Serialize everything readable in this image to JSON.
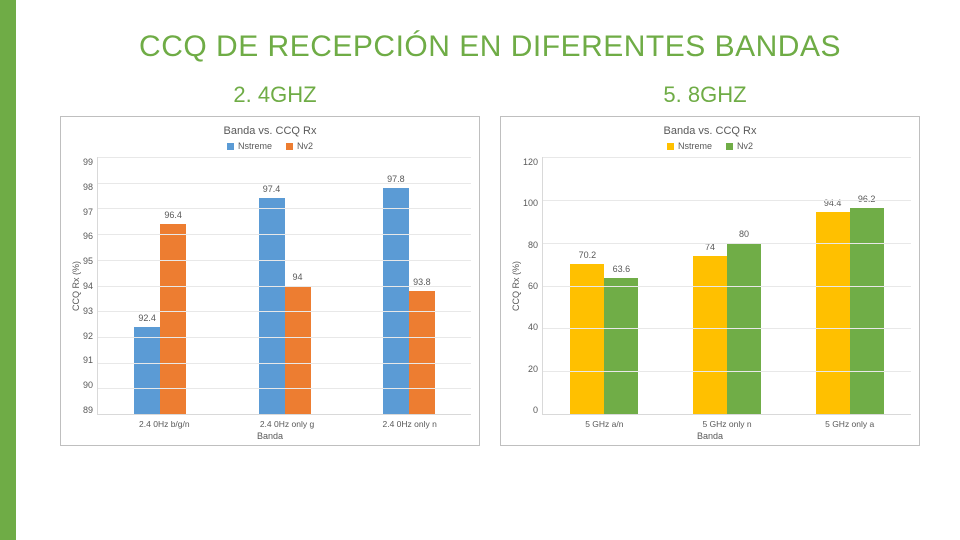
{
  "title": "CCQ DE RECEPCIÓN EN DIFERENTES BANDAS",
  "subtitles": {
    "left": "2. 4GHZ",
    "right": "5. 8GHZ"
  },
  "legend_series": {
    "a": "Nstreme",
    "b": "Nv2"
  },
  "colors": {
    "accent": "#6fac46",
    "left_a": "#5b9bd5",
    "left_b": "#ed7d31",
    "right_a": "#ffc000",
    "right_b": "#70ad47",
    "grid": "#e8e8e8"
  },
  "chart_left": {
    "title": "Banda vs. CCQ Rx",
    "ylabel": "CCQ Rx (%)",
    "xlabel": "Banda",
    "ymin": 89,
    "ymax": 99,
    "ystep": 1,
    "yticks": [
      "99",
      "98",
      "97",
      "96",
      "95",
      "94",
      "93",
      "92",
      "91",
      "90",
      "89"
    ],
    "categories": [
      "2.4 0Hz b/g/n",
      "2.4 0Hz only g",
      "2.4 0Hz only n"
    ],
    "series_a": [
      92.4,
      97.4,
      97.8
    ],
    "series_b": [
      96.4,
      94,
      93.8
    ]
  },
  "chart_right": {
    "title": "Banda vs. CCQ Rx",
    "ylabel": "CCQ Rx (%)",
    "xlabel": "Banda",
    "ymin": 0,
    "ymax": 120,
    "ystep": 20,
    "yticks": [
      "120",
      "100",
      "80",
      "60",
      "40",
      "20",
      "0"
    ],
    "categories": [
      "5 GHz a/n",
      "5 GHz only n",
      "5 GHz only a"
    ],
    "series_a": [
      70.2,
      74,
      94.4
    ],
    "series_b": [
      63.6,
      80,
      96.2
    ]
  }
}
